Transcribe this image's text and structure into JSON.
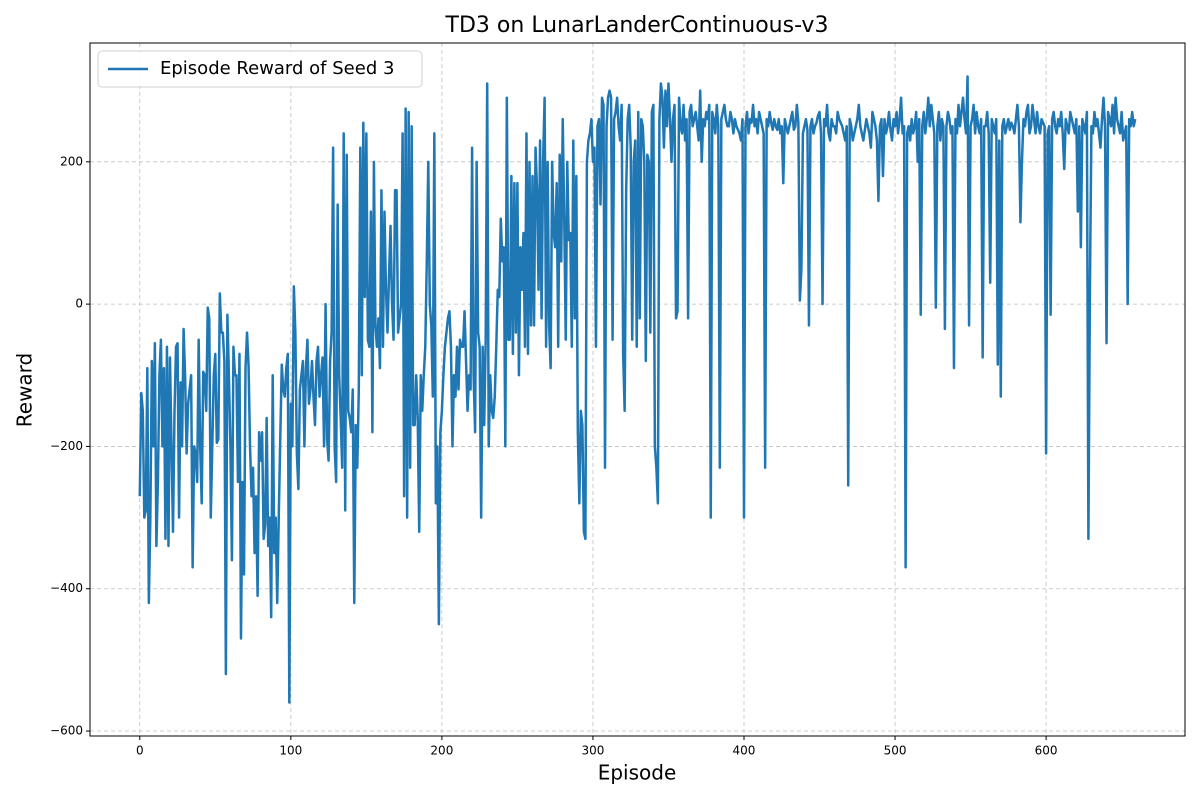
{
  "chart_data": {
    "type": "line",
    "title": "TD3 on LunarLanderContinuous-v3",
    "xlabel": "Episode",
    "ylabel": "Reward",
    "xlim": [
      -32.95,
      691.95
    ],
    "ylim": [
      -607,
      367
    ],
    "xticks": [
      0,
      100,
      200,
      300,
      400,
      500,
      600
    ],
    "yticks": [
      {
        "value": -600,
        "label": "−600"
      },
      {
        "value": -400,
        "label": "−400"
      },
      {
        "value": -200,
        "label": "−200"
      },
      0,
      200
    ],
    "grid": true,
    "legend": "upper left",
    "series": [
      {
        "name": "Episode Reward of Seed 3",
        "color": "#1f77b4",
        "values": [
          -270,
          -125,
          -150,
          -300,
          -290,
          -90,
          -420,
          -300,
          -80,
          -200,
          -55,
          -340,
          -250,
          -100,
          -50,
          -200,
          -90,
          -330,
          -60,
          -340,
          -75,
          -200,
          -320,
          -150,
          -60,
          -55,
          -300,
          -110,
          -200,
          -35,
          -100,
          -210,
          -140,
          -120,
          -100,
          -370,
          -200,
          -210,
          -250,
          -50,
          -200,
          -280,
          -95,
          -100,
          -150,
          -5,
          -20,
          -300,
          -200,
          -100,
          -70,
          -195,
          -190,
          15,
          -40,
          -40,
          -80,
          -520,
          -15,
          -100,
          -200,
          -360,
          -60,
          -100,
          -100,
          -250,
          -70,
          -470,
          -250,
          -380,
          -90,
          -40,
          -85,
          -200,
          -270,
          -230,
          -350,
          -270,
          -410,
          -180,
          -220,
          -180,
          -330,
          -310,
          -160,
          -340,
          -300,
          -440,
          -100,
          -350,
          -300,
          -420,
          -300,
          -190,
          -85,
          -120,
          -130,
          -90,
          -70,
          -560,
          -140,
          -200,
          25,
          -40,
          -210,
          -260,
          -120,
          -100,
          -80,
          -200,
          -90,
          -50,
          -140,
          -120,
          -80,
          -130,
          -170,
          -80,
          -60,
          -130,
          -100,
          -75,
          -200,
          0,
          -190,
          -220,
          -80,
          -40,
          220,
          -200,
          -250,
          140,
          -100,
          -160,
          -230,
          240,
          -290,
          210,
          -150,
          -160,
          -180,
          -120,
          -420,
          -170,
          -230,
          -120,
          220,
          -100,
          255,
          10,
          240,
          -50,
          -60,
          130,
          -180,
          200,
          -30,
          -60,
          -20,
          -90,
          160,
          -60,
          130,
          20,
          -40,
          40,
          110,
          0,
          -50,
          160,
          160,
          -40,
          -20,
          0,
          240,
          -270,
          275,
          -300,
          270,
          -230,
          250,
          -170,
          -170,
          -100,
          -160,
          -320,
          -100,
          -150,
          -100,
          -60,
          60,
          200,
          0,
          -30,
          -130,
          240,
          -280,
          -200,
          -450,
          -180,
          -150,
          -100,
          -60,
          -40,
          -20,
          -10,
          -60,
          -200,
          -100,
          -130,
          -60,
          -120,
          -50,
          -60,
          -60,
          -10,
          -80,
          -150,
          -100,
          -120,
          220,
          -100,
          -180,
          200,
          -40,
          -60,
          -300,
          -60,
          -170,
          -50,
          310,
          -200,
          -100,
          -150,
          -160,
          -130,
          -60,
          20,
          10,
          120,
          60,
          80,
          -200,
          290,
          -50,
          -50,
          180,
          -70,
          170,
          -40,
          170,
          -100,
          80,
          20,
          100,
          -60,
          240,
          -70,
          200,
          -30,
          180,
          -30,
          220,
          160,
          20,
          230,
          -20,
          200,
          290,
          -60,
          200,
          -30,
          -90,
          200,
          100,
          80,
          170,
          -60,
          210,
          60,
          260,
          120,
          -50,
          200,
          90,
          100,
          -60,
          230,
          -20,
          180,
          -180,
          -280,
          -150,
          -170,
          -320,
          -330,
          200,
          230,
          240,
          260,
          200,
          220,
          -60,
          250,
          260,
          140,
          290,
          280,
          -230,
          250,
          290,
          300,
          290,
          -50,
          260,
          270,
          290,
          250,
          230,
          280,
          -70,
          -150,
          160,
          260,
          280,
          220,
          -50,
          200,
          230,
          -60,
          270,
          -20,
          260,
          250,
          200,
          -80,
          210,
          200,
          -40,
          270,
          280,
          -200,
          -230,
          -280,
          260,
          310,
          290,
          220,
          300,
          250,
          310,
          260,
          200,
          260,
          280,
          -20,
          -10,
          290,
          250,
          240,
          280,
          230,
          260,
          -20,
          270,
          280,
          250,
          260,
          270,
          250,
          230,
          300,
          200,
          260,
          250,
          270,
          260,
          280,
          -300,
          270,
          260,
          240,
          280,
          250,
          -230,
          260,
          270,
          280,
          260,
          250,
          250,
          270,
          260,
          240,
          260,
          250,
          245,
          240,
          230,
          260,
          -300,
          250,
          270,
          240,
          260,
          255,
          280,
          250,
          260,
          240,
          270,
          260,
          250,
          240,
          -230,
          260,
          250,
          270,
          255,
          245,
          260,
          250,
          245,
          260,
          240,
          250,
          170,
          260,
          250,
          240,
          250,
          260,
          270,
          245,
          250,
          280,
          255,
          5,
          50,
          240,
          250,
          260,
          245,
          -30,
          250,
          260,
          240,
          250,
          255,
          265,
          270,
          240,
          0,
          260,
          250,
          280,
          240,
          230,
          260,
          250,
          250,
          240,
          270,
          260,
          255,
          250,
          240,
          230,
          250,
          -255,
          260,
          250,
          230,
          240,
          250,
          260,
          280,
          250,
          240,
          230,
          245,
          260,
          250,
          240,
          220,
          270,
          260,
          250,
          230,
          145,
          250,
          260,
          180,
          260,
          240,
          250,
          270,
          245,
          230,
          260,
          250,
          270,
          240,
          260,
          290,
          240,
          250,
          -370,
          240,
          250,
          230,
          260,
          240,
          250,
          270,
          200,
          260,
          -15,
          250,
          270,
          240,
          260,
          290,
          250,
          280,
          260,
          240,
          -5,
          250,
          270,
          230,
          260,
          250,
          -35,
          250,
          270,
          260,
          240,
          250,
          -90,
          260,
          240,
          280,
          250,
          270,
          290,
          260,
          240,
          320,
          -30,
          250,
          260,
          280,
          240,
          270,
          250,
          240,
          260,
          -75,
          250,
          250,
          270,
          240,
          30,
          260,
          250,
          240,
          260,
          -85,
          230,
          -130,
          250,
          260,
          240,
          250,
          260,
          245,
          255,
          250,
          240,
          260,
          280,
          250,
          115,
          200,
          260,
          250,
          270,
          280,
          240,
          250,
          280,
          260,
          240,
          270,
          250,
          240,
          260,
          255,
          250,
          -210,
          240,
          250,
          -15,
          260,
          270,
          250,
          240,
          260,
          250,
          270,
          240,
          190,
          260,
          250,
          240,
          270,
          260,
          250,
          240,
          260,
          130,
          250,
          80,
          260,
          250,
          240,
          270,
          -330,
          20,
          250,
          240,
          270,
          250,
          260,
          240,
          220,
          260,
          290,
          250,
          -55,
          270,
          260,
          250,
          280,
          240,
          290,
          260,
          250,
          240,
          270,
          230,
          240,
          250,
          0,
          260,
          250,
          270,
          250,
          260
        ]
      }
    ]
  }
}
